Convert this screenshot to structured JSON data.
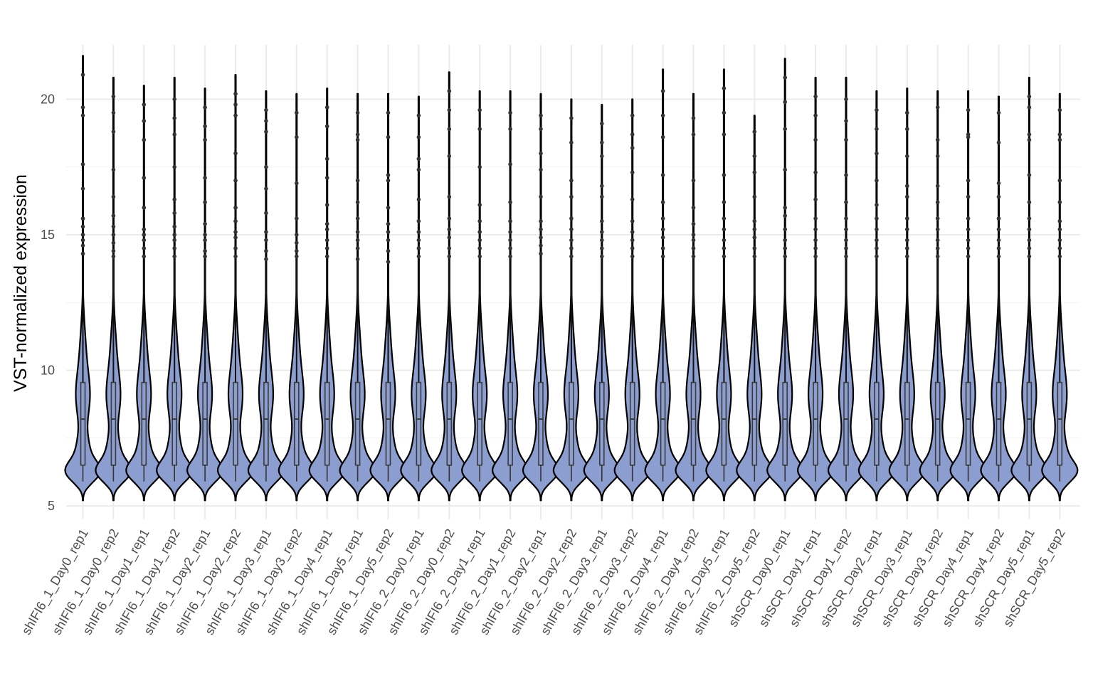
{
  "chart_data": {
    "type": "violin",
    "title": "",
    "xlabel": "",
    "ylabel": "VST-normalized expression",
    "ylim": [
      4.5,
      22.4
    ],
    "yticks": [
      5,
      10,
      15,
      20
    ],
    "grid": true,
    "fill_color": "#8c9dcf",
    "outline_color": "#000000",
    "categories": [
      "shIFI6_1_Day0_rep1",
      "shIFI6_1_Day0_rep2",
      "shIFI6_1_Day1_rep1",
      "shIFI6_1_Day1_rep2",
      "shIFI6_1_Day2_rep1",
      "shIFI6_1_Day2_rep2",
      "shIFI6_1_Day3_rep1",
      "shIFI6_1_Day3_rep2",
      "shIFI6_1_Day4_rep1",
      "shIFI6_1_Day5_rep1",
      "shIFI6_1_Day5_rep2",
      "shIFI6_2_Day0_rep1",
      "shIFI6_2_Day0_rep2",
      "shIFI6_2_Day1_rep1",
      "shIFI6_2_Day1_rep2",
      "shIFI6_2_Day2_rep1",
      "shIFI6_2_Day2_rep2",
      "shIFI6_2_Day3_rep1",
      "shIFI6_2_Day3_rep2",
      "shIFI6_2_Day4_rep1",
      "shIFI6_2_Day4_rep2",
      "shIFI6_2_Day5_rep1",
      "shIFI6_2_Day5_rep2",
      "shSCR_Day0_rep1",
      "shSCR_Day1_rep1",
      "shSCR_Day1_rep2",
      "shSCR_Day2_rep1",
      "shSCR_Day3_rep1",
      "shSCR_Day3_rep2",
      "shSCR_Day4_rep1",
      "shSCR_Day4_rep2",
      "shSCR_Day5_rep1",
      "shSCR_Day5_rep2"
    ],
    "min": 5.2,
    "max": [
      21.6,
      20.8,
      20.5,
      20.8,
      20.4,
      20.9,
      20.3,
      20.2,
      20.4,
      20.2,
      20.2,
      20.1,
      21.0,
      20.3,
      20.3,
      20.2,
      20.0,
      19.8,
      20.0,
      21.1,
      20.2,
      21.1,
      19.4,
      21.5,
      20.8,
      20.8,
      20.3,
      20.4,
      20.3,
      20.3,
      20.1,
      20.8,
      20.2
    ],
    "q1": 6.5,
    "median": 8.2,
    "q3": 9.55,
    "outliers": [
      [
        14.3,
        14.6,
        14.8,
        15.0,
        15.3,
        15.6,
        16.7,
        17.6,
        19.4,
        19.7,
        20.9
      ],
      [
        14.2,
        14.4,
        14.7,
        15.0,
        15.3,
        15.7,
        16.4,
        17.4,
        18.8,
        19.5,
        20.1
      ],
      [
        14.2,
        14.5,
        14.8,
        15.0,
        15.2,
        16.0,
        17.1,
        18.5,
        19.2,
        19.8
      ],
      [
        14.2,
        14.5,
        14.8,
        15.0,
        15.3,
        15.8,
        16.3,
        17.5,
        18.7,
        19.3,
        20.0
      ],
      [
        14.2,
        14.4,
        14.8,
        15.0,
        15.4,
        16.2,
        17.1,
        18.5,
        19.0,
        19.7
      ],
      [
        14.2,
        14.5,
        14.9,
        15.1,
        15.5,
        16.0,
        17.0,
        18.0,
        19.4,
        19.8,
        20.2
      ],
      [
        14.1,
        14.4,
        14.8,
        15.1,
        15.8,
        16.7,
        17.5,
        18.8,
        19.2,
        19.6
      ],
      [
        14.2,
        14.4,
        14.7,
        15.0,
        15.6,
        16.9,
        18.6,
        19.5
      ],
      [
        14.2,
        14.5,
        14.8,
        15.2,
        15.4,
        16.1,
        17.1,
        17.8,
        19.0,
        19.7
      ],
      [
        14.1,
        14.5,
        14.8,
        15.1,
        15.6,
        16.2,
        17.0,
        18.5,
        18.7,
        19.5
      ],
      [
        14.0,
        14.4,
        14.8,
        15.1,
        15.4,
        16.0,
        17.0,
        17.2,
        18.6,
        19.5
      ],
      [
        14.2,
        14.5,
        14.8,
        15.1,
        15.5,
        16.3,
        17.4,
        17.8,
        18.6,
        19.4
      ],
      [
        14.2,
        14.5,
        14.9,
        15.2,
        15.6,
        16.4,
        17.9,
        18.9,
        19.6,
        20.3
      ],
      [
        14.2,
        14.5,
        14.8,
        15.1,
        15.5,
        16.1,
        17.5,
        18.9,
        19.6
      ],
      [
        14.2,
        14.5,
        14.8,
        15.1,
        15.5,
        16.2,
        17.6,
        18.9,
        19.5
      ],
      [
        14.3,
        14.6,
        14.9,
        15.2,
        15.5,
        16.4,
        17.4,
        18.0,
        18.9,
        19.4
      ],
      [
        14.2,
        14.5,
        14.8,
        15.2,
        15.6,
        16.4,
        17.0,
        18.4,
        19.3
      ],
      [
        14.2,
        14.5,
        14.8,
        15.1,
        15.5,
        16.4,
        16.8,
        17.9,
        18.4,
        19.1
      ],
      [
        14.2,
        14.5,
        14.8,
        15.1,
        15.5,
        16.3,
        17.3,
        18.2,
        18.7,
        19.4
      ],
      [
        14.2,
        14.5,
        14.9,
        15.2,
        15.6,
        16.2,
        17.2,
        18.6,
        19.4,
        20.3
      ],
      [
        14.2,
        14.5,
        14.8,
        15.0,
        15.4,
        16.0,
        17.0,
        18.7,
        19.3
      ],
      [
        14.2,
        14.5,
        14.8,
        15.2,
        15.6,
        16.2,
        17.2,
        18.7,
        19.5,
        20.4
      ],
      [
        14.2,
        14.5,
        14.9,
        15.2,
        15.5,
        16.4,
        17.3,
        17.9,
        18.8
      ],
      [
        14.2,
        14.5,
        14.8,
        15.2,
        15.7,
        16.0,
        17.4,
        18.9,
        19.9,
        20.8
      ],
      [
        14.2,
        14.5,
        14.8,
        15.2,
        15.6,
        16.3,
        17.3,
        18.5,
        19.4,
        20.1
      ],
      [
        14.2,
        14.5,
        14.8,
        15.2,
        15.6,
        16.2,
        17.2,
        18.5,
        19.2,
        20.0
      ],
      [
        14.2,
        14.5,
        14.8,
        15.2,
        15.6,
        16.1,
        17.0,
        18.0,
        18.9,
        19.6
      ],
      [
        14.2,
        14.5,
        14.8,
        15.2,
        15.6,
        16.4,
        16.8,
        17.9,
        18.9,
        19.5
      ],
      [
        14.2,
        14.5,
        14.8,
        15.2,
        15.6,
        16.2,
        16.8,
        17.9,
        18.5,
        19.7
      ],
      [
        14.2,
        14.5,
        14.8,
        15.2,
        15.6,
        16.4,
        17.0,
        18.6,
        18.7,
        19.6
      ],
      [
        14.2,
        14.5,
        14.8,
        15.2,
        15.6,
        16.4,
        16.9,
        18.4,
        19.5
      ],
      [
        14.2,
        14.5,
        14.8,
        15.2,
        15.6,
        16.2,
        17.2,
        18.5,
        18.7,
        19.7,
        20.1
      ],
      [
        14.2,
        14.5,
        14.8,
        15.2,
        15.5,
        16.2,
        17.0,
        18.5,
        18.7,
        19.6
      ]
    ]
  }
}
